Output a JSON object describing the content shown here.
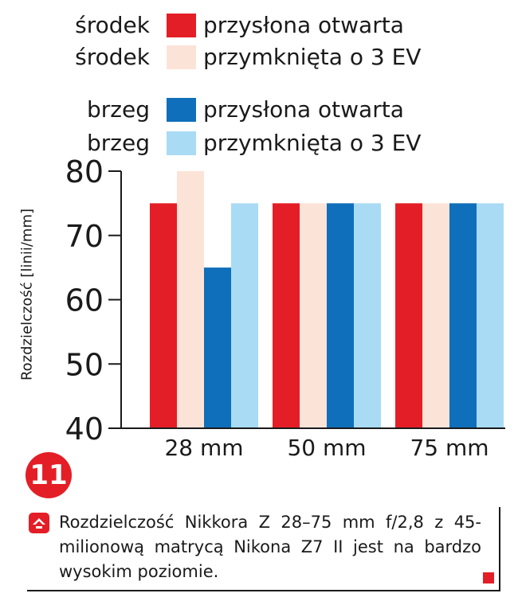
{
  "legend": [
    {
      "position": "środek",
      "label": "przysłona otwarta",
      "color": "#e41e26"
    },
    {
      "position": "środek",
      "label": "przymknięta o 3 EV",
      "color": "#fce3d8"
    },
    {
      "position": "brzeg",
      "label": "przysłona otwarta",
      "color": "#0f6fba"
    },
    {
      "position": "brzeg",
      "label": "przymknięta o 3 EV",
      "color": "#a9dbf4"
    }
  ],
  "badge": "11",
  "caption": "Rozdzielczość Nikkora Z 28–75 mm f/2,8 z 45-milionową matrycą Nikona Z7 II jest na bardzo wysokim poziomie.",
  "chart_data": {
    "type": "bar",
    "categories": [
      "28 mm",
      "50 mm",
      "75 mm"
    ],
    "series": [
      {
        "values": [
          75,
          75,
          75
        ],
        "color": "#e41e26"
      },
      {
        "values": [
          80,
          75,
          75
        ],
        "color": "#fce3d8"
      },
      {
        "values": [
          65,
          75,
          75
        ],
        "color": "#0f6fba"
      },
      {
        "values": [
          75,
          75,
          75
        ],
        "color": "#a9dbf4"
      }
    ],
    "ylabel": "Rozdzielczość  [linii/mm]",
    "ylim": [
      40,
      80
    ],
    "yticks": [
      40,
      50,
      60,
      70,
      80
    ],
    "grid": false,
    "legend": "top-left"
  }
}
